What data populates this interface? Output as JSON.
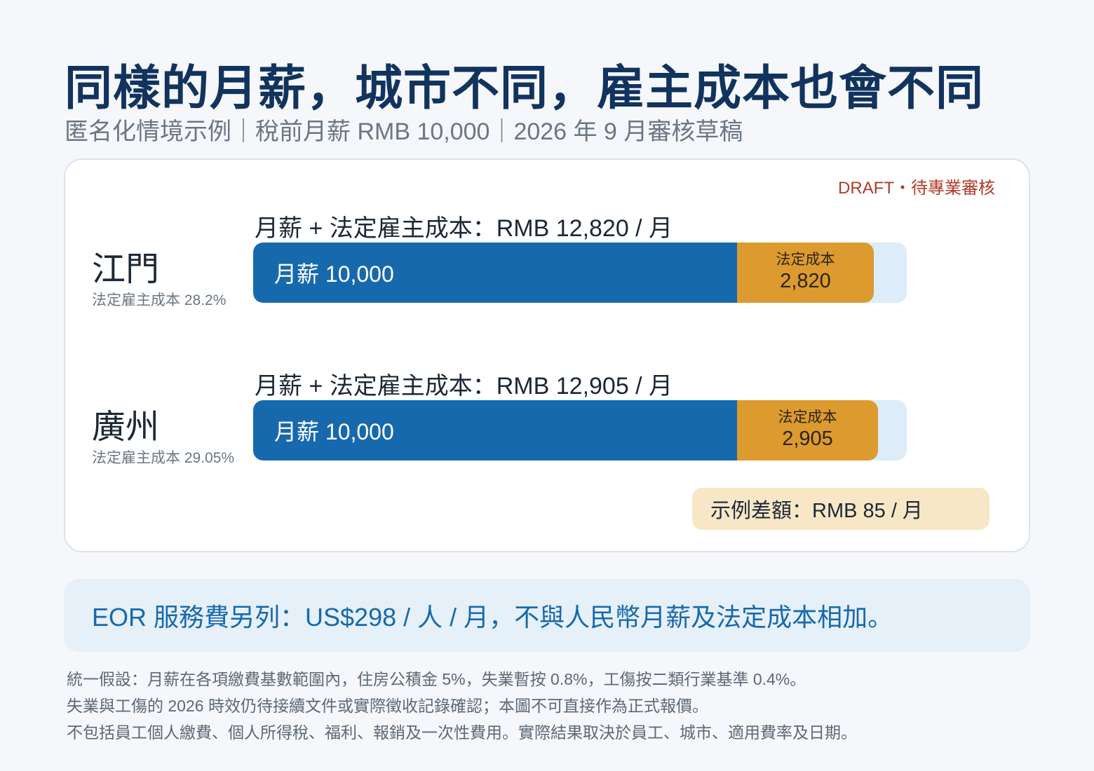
{
  "title": "同樣的月薪，城市不同，雇主成本也會不同",
  "subtitle": "匿名化情境示例｜稅前月薪 RMB 10,000｜2026 年 9 月審核草稿",
  "draft_label": "DRAFT・待專業審核",
  "colors": {
    "salary": "#1769ad",
    "statutory": "#dc9a2f",
    "track": "#dcecf8",
    "draft": "#b13a2a",
    "diff_bg": "#f8e7c6",
    "eor_bg": "#e6f0f9"
  },
  "chart_data": {
    "type": "bar",
    "orientation": "horizontal",
    "stacked": true,
    "unit": "RMB / 月",
    "axis_max": 13500,
    "categories": [
      "江門",
      "廣州"
    ],
    "series": [
      {
        "name": "月薪",
        "values": [
          10000,
          10000
        ]
      },
      {
        "name": "法定成本",
        "values": [
          2820,
          2905
        ]
      }
    ],
    "rows": [
      {
        "city": "江門",
        "pct_label": "法定雇主成本 28.2%",
        "total_label": "月薪 + 法定雇主成本：RMB 12,820 / 月",
        "salary": 10000,
        "salary_label": "月薪 10,000",
        "statutory": 2820,
        "statutory_caption": "法定成本",
        "statutory_label": "2,820"
      },
      {
        "city": "廣州",
        "pct_label": "法定雇主成本 29.05%",
        "total_label": "月薪 + 法定雇主成本：RMB 12,905 / 月",
        "salary": 10000,
        "salary_label": "月薪 10,000",
        "statutory": 2905,
        "statutory_caption": "法定成本",
        "statutory_label": "2,905"
      }
    ],
    "difference_label": "示例差額：RMB 85 / 月"
  },
  "eor_note": "EOR 服務費另列：US$298 / 人 / 月，不與人民幣月薪及法定成本相加。",
  "notes": [
    "統一假設：月薪在各項繳費基數範圍內，住房公積金 5%，失業暫按 0.8%，工傷按二類行業基準 0.4%。",
    "失業與工傷的 2026 時效仍待接續文件或實際徵收記錄確認；本圖不可直接作為正式報價。",
    "不包括員工個人繳費、個人所得稅、福利、報銷及一次性費用。實際結果取決於員工、城市、適用費率及日期。"
  ]
}
